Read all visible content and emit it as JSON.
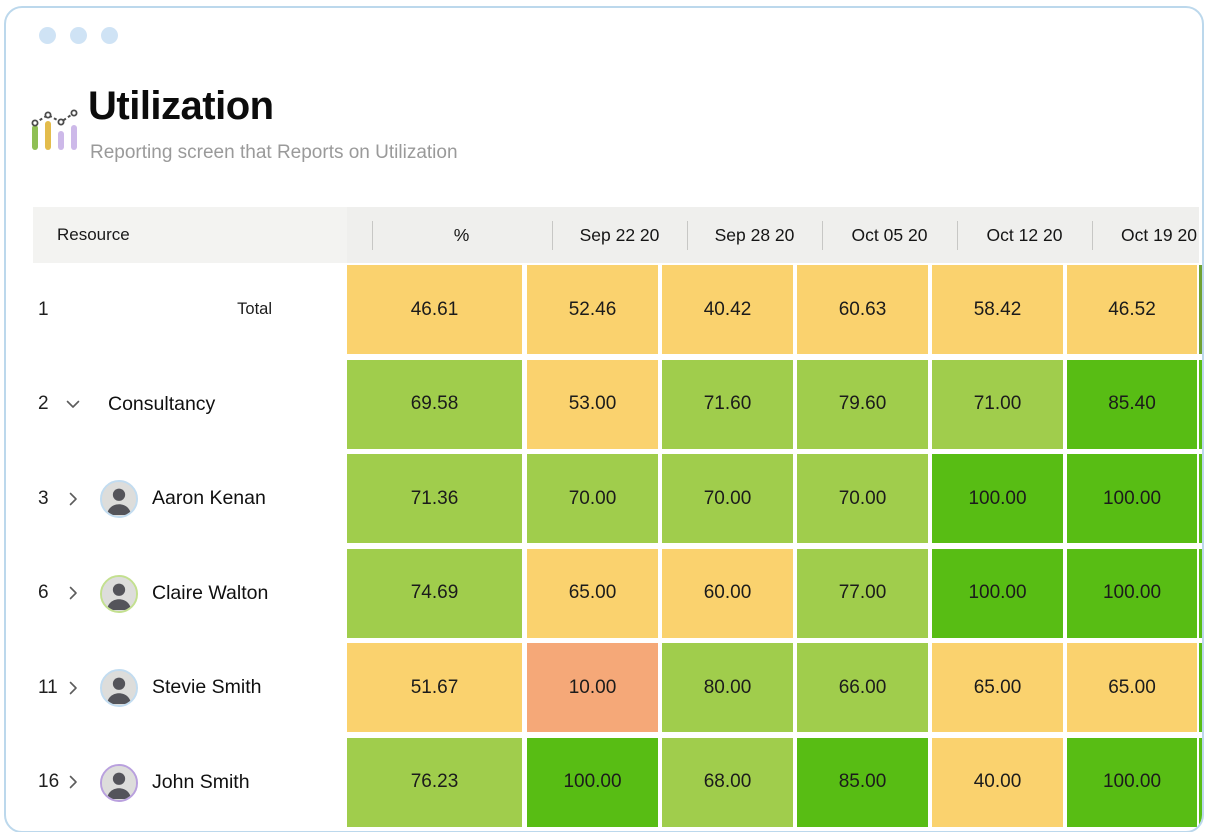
{
  "window": {
    "title_hint": "reporting window"
  },
  "header": {
    "title": "Utilization",
    "subtitle": "Reporting screen that Reports on Utilization"
  },
  "palette": {
    "yellow": "#FAD26E",
    "green": "#A0CD4C",
    "bright_green": "#58BD14",
    "orange": "#F5A878",
    "edge_dark": "#6FA132",
    "header_bg": "#efefed",
    "window_border": "#bcd8ec",
    "dot_blue": "#cfe3f5"
  },
  "table": {
    "resource_header": "Resource",
    "pct_header": "%",
    "date_columns": [
      "Sep 22 20",
      "Sep 28 20",
      "Oct 05 20",
      "Oct 12 20",
      "Oct 19 20"
    ],
    "rows": [
      {
        "num": "1",
        "expander": "none",
        "avatar_ring": null,
        "name": "Total",
        "kind": "total",
        "cells": [
          {
            "v": "46.61",
            "c": "yellow"
          },
          {
            "v": "52.46",
            "c": "yellow"
          },
          {
            "v": "40.42",
            "c": "yellow"
          },
          {
            "v": "60.63",
            "c": "yellow"
          },
          {
            "v": "58.42",
            "c": "yellow"
          },
          {
            "v": "46.52",
            "c": "yellow"
          }
        ],
        "edge": "edge_dark"
      },
      {
        "num": "2",
        "expander": "down",
        "avatar_ring": null,
        "name": "Consultancy",
        "kind": "group",
        "cells": [
          {
            "v": "69.58",
            "c": "green"
          },
          {
            "v": "53.00",
            "c": "yellow"
          },
          {
            "v": "71.60",
            "c": "green"
          },
          {
            "v": "79.60",
            "c": "green"
          },
          {
            "v": "71.00",
            "c": "green"
          },
          {
            "v": "85.40",
            "c": "bright_green"
          }
        ],
        "edge": "bright_green"
      },
      {
        "num": "3",
        "expander": "right",
        "avatar_ring": "#c2dcf0",
        "name": "Aaron Kenan",
        "kind": "person",
        "cells": [
          {
            "v": "71.36",
            "c": "green"
          },
          {
            "v": "70.00",
            "c": "green"
          },
          {
            "v": "70.00",
            "c": "green"
          },
          {
            "v": "70.00",
            "c": "green"
          },
          {
            "v": "100.00",
            "c": "bright_green"
          },
          {
            "v": "100.00",
            "c": "bright_green"
          }
        ],
        "edge": "bright_green"
      },
      {
        "num": "6",
        "expander": "right",
        "avatar_ring": "#c3e08f",
        "name": "Claire Walton",
        "kind": "person",
        "cells": [
          {
            "v": "74.69",
            "c": "green"
          },
          {
            "v": "65.00",
            "c": "yellow"
          },
          {
            "v": "60.00",
            "c": "yellow"
          },
          {
            "v": "77.00",
            "c": "green"
          },
          {
            "v": "100.00",
            "c": "bright_green"
          },
          {
            "v": "100.00",
            "c": "bright_green"
          }
        ],
        "edge": "bright_green"
      },
      {
        "num": "11",
        "expander": "right",
        "avatar_ring": "#c2dcf0",
        "name": "Stevie Smith",
        "kind": "person",
        "cells": [
          {
            "v": "51.67",
            "c": "yellow"
          },
          {
            "v": "10.00",
            "c": "orange"
          },
          {
            "v": "80.00",
            "c": "green"
          },
          {
            "v": "66.00",
            "c": "green"
          },
          {
            "v": "65.00",
            "c": "yellow"
          },
          {
            "v": "65.00",
            "c": "yellow"
          }
        ],
        "edge": "bright_green"
      },
      {
        "num": "16",
        "expander": "right",
        "avatar_ring": "#b9a0de",
        "name": "John Smith",
        "kind": "person",
        "cells": [
          {
            "v": "76.23",
            "c": "green"
          },
          {
            "v": "100.00",
            "c": "bright_green"
          },
          {
            "v": "68.00",
            "c": "green"
          },
          {
            "v": "85.00",
            "c": "bright_green"
          },
          {
            "v": "40.00",
            "c": "yellow"
          },
          {
            "v": "100.00",
            "c": "bright_green"
          }
        ],
        "edge": "bright_green"
      }
    ]
  }
}
